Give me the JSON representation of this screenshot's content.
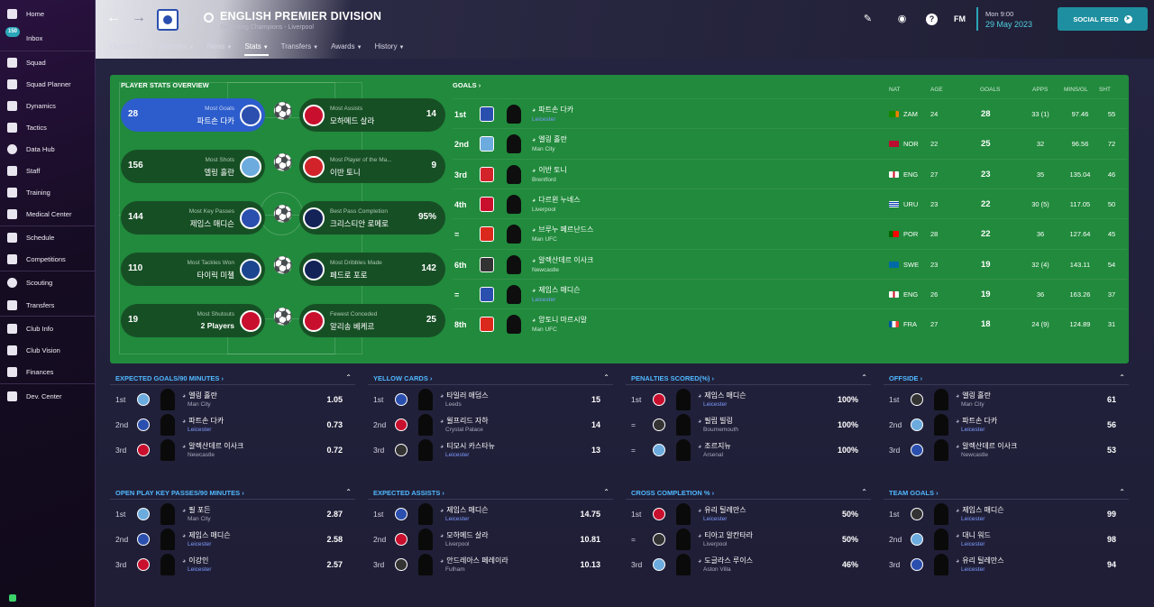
{
  "sidebar": {
    "inbox_count": "150",
    "items": [
      {
        "label": "Home",
        "icon": "home-icon"
      },
      {
        "label": "Inbox",
        "icon": "inbox-icon"
      },
      {
        "label": "Squad",
        "icon": "shirt-icon"
      },
      {
        "label": "Squad Planner",
        "icon": "planner-icon"
      },
      {
        "label": "Dynamics",
        "icon": "dynamics-icon"
      },
      {
        "label": "Tactics",
        "icon": "tactics-icon"
      },
      {
        "label": "Data Hub",
        "icon": "data-hub-icon"
      },
      {
        "label": "Staff",
        "icon": "staff-icon"
      },
      {
        "label": "Training",
        "icon": "training-icon"
      },
      {
        "label": "Medical Center",
        "icon": "medical-icon"
      },
      {
        "label": "Schedule",
        "icon": "schedule-icon"
      },
      {
        "label": "Competitions",
        "icon": "trophy-icon"
      },
      {
        "label": "Scouting",
        "icon": "scouting-icon"
      },
      {
        "label": "Transfers",
        "icon": "transfers-icon"
      },
      {
        "label": "Club Info",
        "icon": "club-info-icon"
      },
      {
        "label": "Club Vision",
        "icon": "club-vision-icon"
      },
      {
        "label": "Finances",
        "icon": "finances-icon"
      },
      {
        "label": "Dev. Center",
        "icon": "dev-center-icon"
      }
    ]
  },
  "header": {
    "title": "ENGLISH PREMIER DIVISION",
    "subtitle": "Defending Champions - Liverpool",
    "tabs": [
      "Overview",
      "Matches",
      "News",
      "Stats",
      "Transfers",
      "Awards",
      "History"
    ],
    "active_tab": "Stats",
    "fm_label": "FM",
    "day": "Mon 9:00",
    "date": "29 May 2023",
    "social_feed": "SOCIAL FEED",
    "accent": "#2aa6b8"
  },
  "overview": {
    "title": "PLAYER STATS OVERVIEW",
    "rows": [
      {
        "left": {
          "value": "28",
          "label": "Most Goals",
          "name": "파트손 다카"
        },
        "right": {
          "value": "14",
          "label": "Most Assists",
          "name": "모하메드 살라"
        }
      },
      {
        "left": {
          "value": "156",
          "label": "Most Shots",
          "name": "엘링 홀란"
        },
        "right": {
          "value": "9",
          "label": "Most Player of the Ma...",
          "name": "이반 토니"
        }
      },
      {
        "left": {
          "value": "144",
          "label": "Most Key Passes",
          "name": "제임스 매디슨"
        },
        "right": {
          "value": "95%",
          "label": "Best Pass Completion",
          "name": "크리스티안 로메로"
        }
      },
      {
        "left": {
          "value": "110",
          "label": "Most Tackles Won",
          "name": "타이릭 미첼"
        },
        "right": {
          "value": "142",
          "label": "Most Dribbles Made",
          "name": "페드로 포로"
        }
      },
      {
        "left": {
          "value": "19",
          "label": "Most Shutouts",
          "name": "2 Players"
        },
        "right": {
          "value": "25",
          "label": "Fewest Conceded",
          "name": "알리송 베케르"
        }
      }
    ]
  },
  "goals": {
    "title": "GOALS",
    "columns": [
      "NAT",
      "AGE",
      "GOALS",
      "APPS",
      "MINS/GL",
      "SHT"
    ],
    "rows": [
      {
        "rank": "1st",
        "name": "파트손 다카",
        "club": "Leicester",
        "nat": "ZAM",
        "age": "24",
        "goals": "28",
        "apps": "33 (1)",
        "mins": "97.46",
        "sht": "55"
      },
      {
        "rank": "2nd",
        "name": "엘링 홀란",
        "club": "Man City",
        "nat": "NOR",
        "age": "22",
        "goals": "25",
        "apps": "32",
        "mins": "96.56",
        "sht": "72"
      },
      {
        "rank": "3rd",
        "name": "이반 토니",
        "club": "Brentford",
        "nat": "ENG",
        "age": "27",
        "goals": "23",
        "apps": "35",
        "mins": "135.04",
        "sht": "46"
      },
      {
        "rank": "4th",
        "name": "다르윈 누녜스",
        "club": "Liverpool",
        "nat": "URU",
        "age": "23",
        "goals": "22",
        "apps": "30 (5)",
        "mins": "117.05",
        "sht": "50"
      },
      {
        "rank": "=",
        "name": "브루누 페르난드스",
        "club": "Man UFC",
        "nat": "POR",
        "age": "28",
        "goals": "22",
        "apps": "36",
        "mins": "127.64",
        "sht": "45"
      },
      {
        "rank": "6th",
        "name": "알렉산데르 이사크",
        "club": "Newcastle",
        "nat": "SWE",
        "age": "23",
        "goals": "19",
        "apps": "32 (4)",
        "mins": "143.11",
        "sht": "54"
      },
      {
        "rank": "=",
        "name": "제임스 매디슨",
        "club": "Leicester",
        "nat": "ENG",
        "age": "26",
        "goals": "19",
        "apps": "36",
        "mins": "163.26",
        "sht": "37"
      },
      {
        "rank": "8th",
        "name": "앙토니 마르시알",
        "club": "Man UFC",
        "nat": "FRA",
        "age": "27",
        "goals": "18",
        "apps": "24 (9)",
        "mins": "124.89",
        "sht": "31"
      }
    ]
  },
  "panels": [
    {
      "title": "EXPECTED GOALS/90 MINUTES",
      "rows": [
        {
          "rank": "1st",
          "name": "엘링 홀란",
          "club": "Man City",
          "value": "1.05"
        },
        {
          "rank": "2nd",
          "name": "파트손 다카",
          "club": "Leicester",
          "value": "0.73"
        },
        {
          "rank": "3rd",
          "name": "알렉산데르 이사크",
          "club": "Newcastle",
          "value": "0.72"
        }
      ]
    },
    {
      "title": "YELLOW CARDS",
      "rows": [
        {
          "rank": "1st",
          "name": "타일러 애덤스",
          "club": "Leeds",
          "value": "15"
        },
        {
          "rank": "2nd",
          "name": "윌프리드 자하",
          "club": "Crystal Palace",
          "value": "14"
        },
        {
          "rank": "3rd",
          "name": "티모시 카스타뉴",
          "club": "Leicester",
          "value": "13"
        }
      ]
    },
    {
      "title": "PENALTIES SCORED(%)",
      "rows": [
        {
          "rank": "1st",
          "name": "제임스 매디슨",
          "club": "Leicester",
          "value": "100%"
        },
        {
          "rank": "=",
          "name": "필립 빌링",
          "club": "Bournemouth",
          "value": "100%"
        },
        {
          "rank": "=",
          "name": "조르지뉴",
          "club": "Arsenal",
          "value": "100%"
        }
      ]
    },
    {
      "title": "OFFSIDE",
      "rows": [
        {
          "rank": "1st",
          "name": "엘링 홀란",
          "club": "Man City",
          "value": "61"
        },
        {
          "rank": "2nd",
          "name": "파트손 다카",
          "club": "Leicester",
          "value": "56"
        },
        {
          "rank": "3rd",
          "name": "알렉산데르 이사크",
          "club": "Newcastle",
          "value": "53"
        }
      ]
    },
    {
      "title": "OPEN PLAY KEY PASSES/90 MINUTES",
      "rows": [
        {
          "rank": "1st",
          "name": "필 포든",
          "club": "Man City",
          "value": "2.87"
        },
        {
          "rank": "2nd",
          "name": "제임스 매디슨",
          "club": "Leicester",
          "value": "2.58"
        },
        {
          "rank": "3rd",
          "name": "이강인",
          "club": "Leicester",
          "value": "2.57"
        }
      ]
    },
    {
      "title": "EXPECTED ASSISTS",
      "rows": [
        {
          "rank": "1st",
          "name": "제임스 매디슨",
          "club": "Leicester",
          "value": "14.75"
        },
        {
          "rank": "2nd",
          "name": "모하메드 살라",
          "club": "Liverpool",
          "value": "10.81"
        },
        {
          "rank": "3rd",
          "name": "안드레아스 페레이라",
          "club": "Fulham",
          "value": "10.13"
        }
      ]
    },
    {
      "title": "CROSS COMPLETION %",
      "rows": [
        {
          "rank": "1st",
          "name": "유리 틸레만스",
          "club": "Leicester",
          "value": "50%"
        },
        {
          "rank": "=",
          "name": "티아고 알칸타라",
          "club": "Liverpool",
          "value": "50%"
        },
        {
          "rank": "3rd",
          "name": "도글라스 루이스",
          "club": "Aston Villa",
          "value": "46%"
        }
      ]
    },
    {
      "title": "TEAM GOALS",
      "rows": [
        {
          "rank": "1st",
          "name": "제임스 매디슨",
          "club": "Leicester",
          "value": "99"
        },
        {
          "rank": "2nd",
          "name": "대니 워드",
          "club": "Leicester",
          "value": "98"
        },
        {
          "rank": "3rd",
          "name": "유리 틸레만스",
          "club": "Leicester",
          "value": "94"
        }
      ]
    }
  ]
}
